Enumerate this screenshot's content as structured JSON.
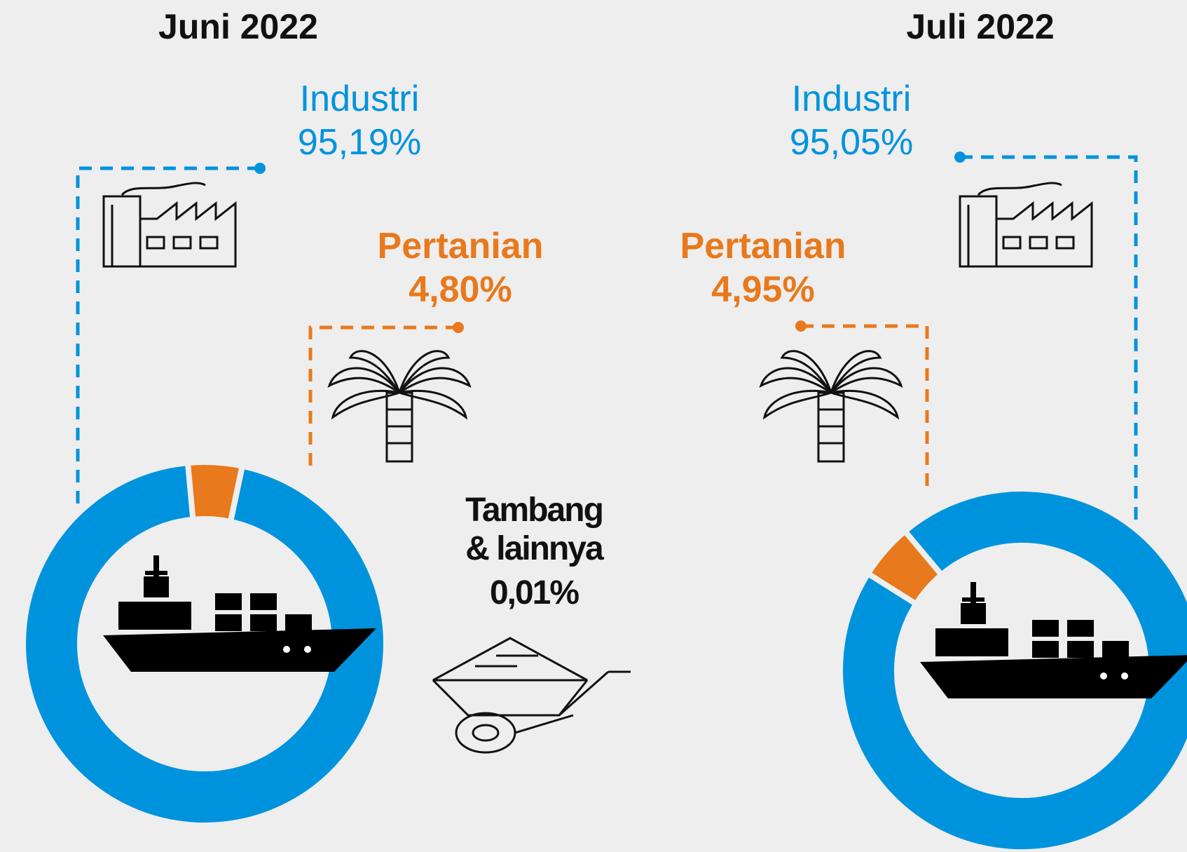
{
  "chart_data": [
    {
      "type": "pie",
      "title": "Juni 2022",
      "categories": [
        "Industri",
        "Pertanian",
        "Tambang & lainnya"
      ],
      "values": [
        95.19,
        4.8,
        0.01
      ],
      "value_labels": [
        "95,19%",
        "4,80%",
        "0,01%"
      ],
      "colors": [
        "#0093dd",
        "#e8791c",
        "#000000"
      ]
    },
    {
      "type": "pie",
      "title": "Juli 2022",
      "categories": [
        "Industri",
        "Pertanian"
      ],
      "values": [
        95.05,
        4.95
      ],
      "value_labels": [
        "95,05%",
        "4,95%"
      ],
      "colors": [
        "#0093dd",
        "#e8791c"
      ]
    }
  ]
}
